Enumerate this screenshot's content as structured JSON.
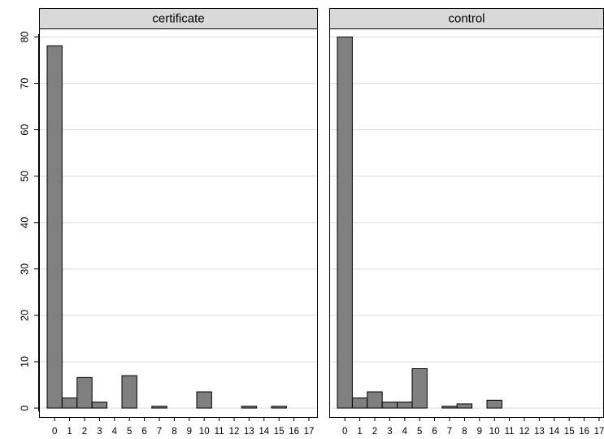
{
  "chart_data": {
    "type": "bar",
    "panels": [
      {
        "title": "certificate",
        "categories": [
          "0",
          "1",
          "2",
          "3",
          "4",
          "5",
          "6",
          "7",
          "8",
          "9",
          "10",
          "11",
          "12",
          "13",
          "14",
          "15",
          "16",
          "17"
        ],
        "values": [
          78.1,
          2.2,
          6.6,
          1.3,
          0,
          7.0,
          0,
          0.4,
          0,
          0,
          3.5,
          0,
          0,
          0.4,
          0,
          0.4,
          0,
          0
        ]
      },
      {
        "title": "control",
        "categories": [
          "0",
          "1",
          "2",
          "3",
          "4",
          "5",
          "6",
          "7",
          "8",
          "9",
          "10",
          "11",
          "12",
          "13",
          "14",
          "15",
          "16",
          "17"
        ],
        "values": [
          80.0,
          2.2,
          3.5,
          1.3,
          1.3,
          8.5,
          0,
          0.4,
          0.9,
          0,
          1.7,
          0,
          0,
          0,
          0,
          0,
          0,
          0
        ]
      }
    ],
    "yticks": [
      0,
      10,
      20,
      30,
      40,
      50,
      60,
      70,
      80
    ],
    "ylim": [
      0,
      80
    ],
    "xlabel": "",
    "ylabel": "",
    "grid": true,
    "colors": {
      "bar_fill": "#808080",
      "bar_stroke": "#000000",
      "strip_fill": "#d9d9d9",
      "grid": "#dcdcdc",
      "frame": "#000000"
    }
  }
}
